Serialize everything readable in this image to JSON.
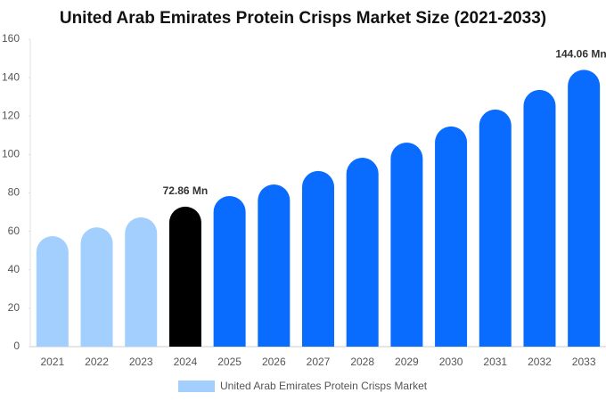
{
  "chart_data": {
    "type": "bar",
    "title": "United Arab Emirates Protein Crisps Market Size (2021-2033)",
    "categories": [
      "2021",
      "2022",
      "2023",
      "2024",
      "2025",
      "2026",
      "2027",
      "2028",
      "2029",
      "2030",
      "2031",
      "2032",
      "2033"
    ],
    "series": [
      {
        "name": "United Arab Emirates Protein Crisps Market",
        "color": "#a3cfff",
        "values": [
          57.5,
          62.1,
          67.3,
          72.86,
          78.4,
          84.4,
          91.4,
          98.3,
          106.2,
          114.6,
          123.4,
          133.6,
          144.06
        ],
        "colors": [
          "#a3cfff",
          "#a3cfff",
          "#a3cfff",
          "#000000",
          "#0a6cff",
          "#0a6cff",
          "#0a6cff",
          "#0a6cff",
          "#0a6cff",
          "#0a6cff",
          "#0a6cff",
          "#0a6cff",
          "#0a6cff"
        ],
        "value_labels": [
          null,
          null,
          null,
          "72.86 Mn",
          null,
          null,
          null,
          null,
          null,
          null,
          null,
          null,
          "144.06 Mn"
        ]
      }
    ],
    "ylim": [
      0,
      160
    ],
    "yticks": [
      0,
      20,
      40,
      60,
      80,
      100,
      120,
      140,
      160
    ],
    "grid": false
  }
}
